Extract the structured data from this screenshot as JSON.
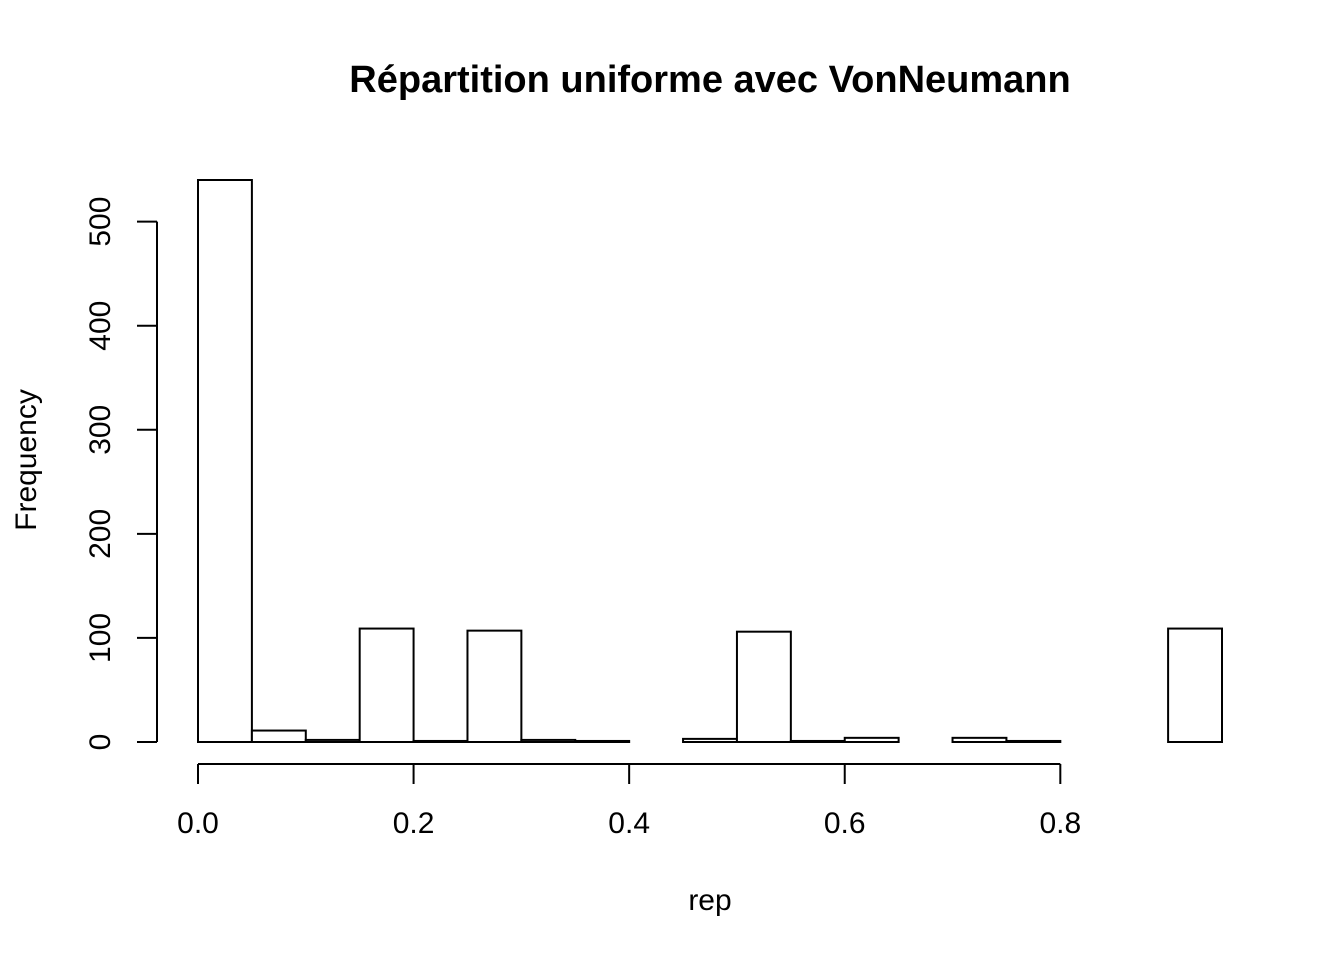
{
  "chart_data": {
    "type": "bar",
    "title": "Répartition uniforme avec VonNeumann",
    "xlabel": "rep",
    "ylabel": "Frequency",
    "bin_width": 0.05,
    "bin_starts": [
      0.0,
      0.05,
      0.1,
      0.15,
      0.2,
      0.25,
      0.3,
      0.35,
      0.4,
      0.45,
      0.5,
      0.55,
      0.6,
      0.65,
      0.7,
      0.75,
      0.8,
      0.85,
      0.9
    ],
    "values": [
      540,
      11,
      2,
      109,
      1,
      107,
      2,
      1,
      0,
      3,
      106,
      1,
      4,
      0,
      4,
      1,
      0,
      0,
      109
    ],
    "xlim": [
      0.0,
      0.95
    ],
    "ylim": [
      0,
      540
    ],
    "x_axis_range": [
      0.0,
      0.8
    ],
    "y_axis_range": [
      0,
      500
    ],
    "x_ticks": [
      0.0,
      0.2,
      0.4,
      0.6,
      0.8
    ],
    "x_tick_labels": [
      "0.0",
      "0.2",
      "0.4",
      "0.6",
      "0.8"
    ],
    "y_ticks": [
      0,
      100,
      200,
      300,
      400,
      500
    ],
    "y_tick_labels": [
      "0",
      "100",
      "200",
      "300",
      "400",
      "500"
    ],
    "grid": false,
    "legend": "none"
  }
}
